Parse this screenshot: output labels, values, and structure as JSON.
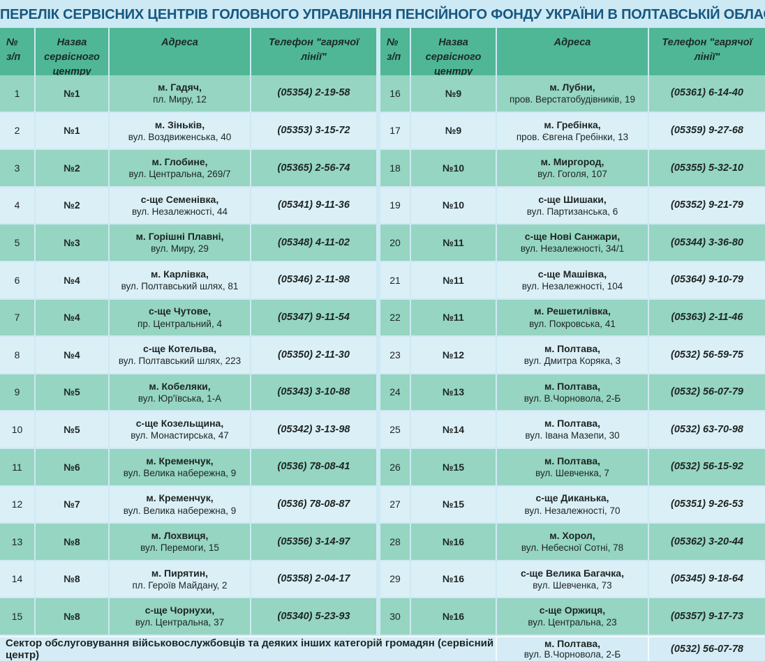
{
  "title": "ПЕРЕЛІК СЕРВІСНИХ ЦЕНТРІВ ГОЛОВНОГО УПРАВЛІННЯ ПЕНСІЙНОГО ФОНДУ УКРАЇНИ В ПОЛТАВСЬКІЙ ОБЛАСТІ",
  "columns": {
    "num_line1": "№",
    "num_line2": "з/п",
    "center": "Назва сервісного центру",
    "address": "Адреса",
    "phone": "Телефон \"гарячої лінії\""
  },
  "left_rows": [
    {
      "num": "1",
      "center": "№1",
      "addr1": "м. Гадяч,",
      "addr2": "пл. Миру, 12",
      "phone": "(05354)  2-19-58"
    },
    {
      "num": "2",
      "center": "№1",
      "addr1": "м. Зіньків,",
      "addr2": "вул. Воздвиженська, 40",
      "phone": "(05353)  3-15-72"
    },
    {
      "num": "3",
      "center": "№2",
      "addr1": "м. Глобине,",
      "addr2": "вул. Центральна, 269/7",
      "phone": "(05365)  2-56-74"
    },
    {
      "num": "4",
      "center": "№2",
      "addr1": "с-ще  Семенівка,",
      "addr2": "вул. Незалежності, 44",
      "phone": "(05341)  9-11-36"
    },
    {
      "num": "5",
      "center": "№3",
      "addr1": "м. Горішні Плавні,",
      "addr2": "вул. Миру, 29",
      "phone": "(05348)  4-11-02"
    },
    {
      "num": "6",
      "center": "№4",
      "addr1": "м. Карлівка,",
      "addr2": "вул. Полтавський шлях, 81",
      "phone": "(05346)  2-11-98"
    },
    {
      "num": "7",
      "center": "№4",
      "addr1": "с-ще Чутове,",
      "addr2": "пр. Центральний, 4",
      "phone": "(05347)  9-11-54"
    },
    {
      "num": "8",
      "center": "№4",
      "addr1": "с-ще Котельва,",
      "addr2": "вул. Полтавський шлях, 223",
      "phone": "(05350)  2-11-30"
    },
    {
      "num": "9",
      "center": "№5",
      "addr1": "м. Кобеляки,",
      "addr2": "вул. Юр'ївська, 1-А",
      "phone": "(05343)  3-10-88"
    },
    {
      "num": "10",
      "center": "№5",
      "addr1": "с-ще Козельщина,",
      "addr2": "вул. Монастирська, 47",
      "phone": "(05342)  3-13-98"
    },
    {
      "num": "11",
      "center": "№6",
      "addr1": "м. Кременчук,",
      "addr2": "вул. Велика набережна, 9",
      "phone": "(0536)  78-08-41"
    },
    {
      "num": "12",
      "center": "№7",
      "addr1": "м. Кременчук,",
      "addr2": "вул. Велика набережна, 9",
      "phone": "(0536)  78-08-87"
    },
    {
      "num": "13",
      "center": "№8",
      "addr1": "м. Лохвиця,",
      "addr2": "вул. Перемоги, 15",
      "phone": "(05356)  3-14-97"
    },
    {
      "num": "14",
      "center": "№8",
      "addr1": "м. Пирятин,",
      "addr2": "пл. Героїв Майдану, 2",
      "phone": "(05358)  2-04-17"
    },
    {
      "num": "15",
      "center": "№8",
      "addr1": "с-ще Чорнухи,",
      "addr2": "вул. Центральна, 37",
      "phone": "(05340)  5-23-93"
    }
  ],
  "right_rows": [
    {
      "num": "16",
      "center": "№9",
      "addr1": "м. Лубни,",
      "addr2": "пров. Верстатобудівників, 19",
      "phone": "(05361)  6-14-40"
    },
    {
      "num": "17",
      "center": "№9",
      "addr1": "м. Гребінка,",
      "addr2": "пров. Євгена  Гребінки, 13",
      "phone": "(05359)  9-27-68"
    },
    {
      "num": "18",
      "center": "№10",
      "addr1": "м. Миргород,",
      "addr2": "вул. Гоголя, 107",
      "phone": "(05355)  5-32-10"
    },
    {
      "num": "19",
      "center": "№10",
      "addr1": "с-ще Шишаки,",
      "addr2": "вул. Партизанська, 6",
      "phone": "(05352)  9-21-79"
    },
    {
      "num": "20",
      "center": "№11",
      "addr1": "с-ще Нові Санжари,",
      "addr2": "вул. Незалежності, 34/1",
      "phone": "(05344)  3-36-80"
    },
    {
      "num": "21",
      "center": "№11",
      "addr1": "с-ще Машівка,",
      "addr2": "вул. Незалежності, 104",
      "phone": "(05364)  9-10-79"
    },
    {
      "num": "22",
      "center": "№11",
      "addr1": "м. Решетилівка,",
      "addr2": "вул. Покровська, 41",
      "phone": "(05363)  2-11-46"
    },
    {
      "num": "23",
      "center": "№12",
      "addr1": "м. Полтава,",
      "addr2": "вул. Дмитра Коряка, 3",
      "phone": "(0532)  56-59-75"
    },
    {
      "num": "24",
      "center": "№13",
      "addr1": "м. Полтава,",
      "addr2": "вул. В.Чорновола, 2-Б",
      "phone": "(0532)  56-07-79"
    },
    {
      "num": "25",
      "center": "№14",
      "addr1": "м. Полтава,",
      "addr2": "вул. Івана Мазепи, 30",
      "phone": "(0532)  63-70-98"
    },
    {
      "num": "26",
      "center": "№15",
      "addr1": "м. Полтава,",
      "addr2": "вул. Шевченка, 7",
      "phone": "(0532)  56-15-92"
    },
    {
      "num": "27",
      "center": "№15",
      "addr1": "с-ще Диканька,",
      "addr2": "вул. Незалежності, 70",
      "phone": "(05351)  9-26-53"
    },
    {
      "num": "28",
      "center": "№16",
      "addr1": "м. Хорол,",
      "addr2": "вул. Небесної Сотні, 78",
      "phone": "(05362)  3-20-44"
    },
    {
      "num": "29",
      "center": "№16",
      "addr1": "с-ще Велика Багачка,",
      "addr2": "вул. Шевченка, 73",
      "phone": "(05345)  9-18-64"
    },
    {
      "num": "30",
      "center": "№16",
      "addr1": "с-ще Оржиця,",
      "addr2": "вул. Центральна, 23",
      "phone": "(05357)  9-17-73"
    }
  ],
  "footer": {
    "label": "Сектор обслуговування військовослужбовців та деяких інших категорій громадян (сервісний центр)",
    "addr1": "м. Полтава,",
    "addr2": "вул. В.Чорновола, 2-Б",
    "phone": "(0532)  56-07-78"
  },
  "colors": {
    "background": "#cde9f4",
    "title_text": "#17587f",
    "header_green": "#4fb795",
    "row_green": "#95d5c1",
    "row_blue": "#dbeff7",
    "grid_line": "#f3fbfe"
  }
}
